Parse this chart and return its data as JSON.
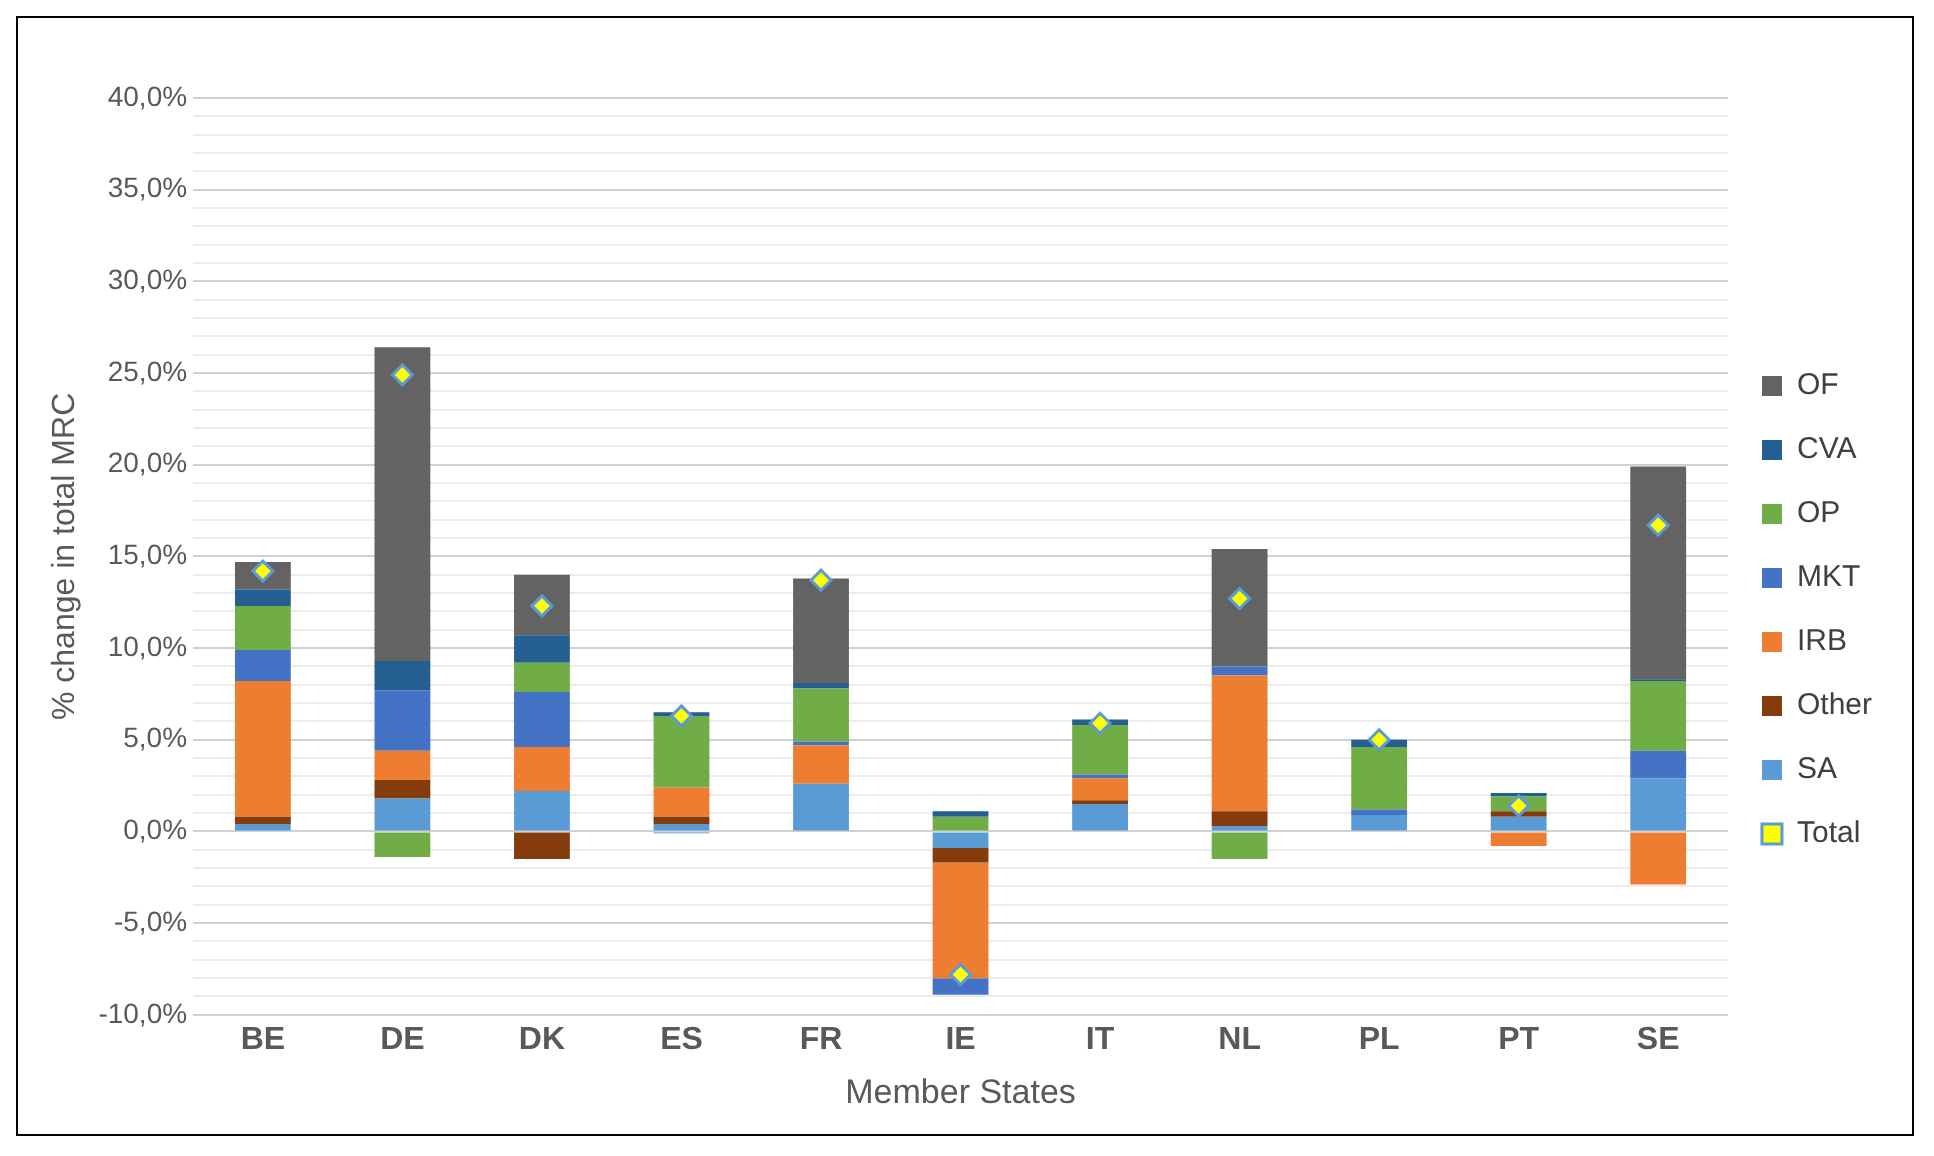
{
  "chart_data": {
    "type": "bar",
    "stacked": true,
    "xlabel": "Member States",
    "ylabel": "% change in total MRC",
    "legend": "right",
    "grid": "y",
    "categories": [
      "BE",
      "DE",
      "DK",
      "ES",
      "FR",
      "IE",
      "IT",
      "NL",
      "PL",
      "PT",
      "SE"
    ],
    "ylim": [
      -10,
      40
    ],
    "yticks": [
      {
        "value": -10,
        "label": "-10,0%"
      },
      {
        "value": -9,
        "label": null
      },
      {
        "value": -8,
        "label": null
      },
      {
        "value": -7,
        "label": null
      },
      {
        "value": -6,
        "label": null
      },
      {
        "value": -5,
        "label": "-5,0%"
      },
      {
        "value": -4,
        "label": null
      },
      {
        "value": -3,
        "label": null
      },
      {
        "value": -2,
        "label": null
      },
      {
        "value": -1,
        "label": null
      },
      {
        "value": 0,
        "label": "0,0%"
      },
      {
        "value": 1,
        "label": null
      },
      {
        "value": 2,
        "label": null
      },
      {
        "value": 3,
        "label": null
      },
      {
        "value": 4,
        "label": null
      },
      {
        "value": 5,
        "label": "5,0%"
      },
      {
        "value": 6,
        "label": null
      },
      {
        "value": 7,
        "label": null
      },
      {
        "value": 8,
        "label": null
      },
      {
        "value": 9,
        "label": null
      },
      {
        "value": 10,
        "label": "10,0%"
      },
      {
        "value": 11,
        "label": null
      },
      {
        "value": 12,
        "label": null
      },
      {
        "value": 13,
        "label": null
      },
      {
        "value": 14,
        "label": null
      },
      {
        "value": 15,
        "label": "15,0%"
      },
      {
        "value": 16,
        "label": null
      },
      {
        "value": 17,
        "label": null
      },
      {
        "value": 18,
        "label": null
      },
      {
        "value": 19,
        "label": null
      },
      {
        "value": 20,
        "label": "20,0%"
      },
      {
        "value": 21,
        "label": null
      },
      {
        "value": 22,
        "label": null
      },
      {
        "value": 23,
        "label": null
      },
      {
        "value": 24,
        "label": null
      },
      {
        "value": 25,
        "label": "25,0%"
      },
      {
        "value": 26,
        "label": null
      },
      {
        "value": 27,
        "label": null
      },
      {
        "value": 28,
        "label": null
      },
      {
        "value": 29,
        "label": null
      },
      {
        "value": 30,
        "label": "30,0%"
      },
      {
        "value": 31,
        "label": null
      },
      {
        "value": 32,
        "label": null
      },
      {
        "value": 33,
        "label": null
      },
      {
        "value": 34,
        "label": null
      },
      {
        "value": 35,
        "label": "35,0%"
      },
      {
        "value": 36,
        "label": null
      },
      {
        "value": 37,
        "label": null
      },
      {
        "value": 38,
        "label": null
      },
      {
        "value": 39,
        "label": null
      },
      {
        "value": 40,
        "label": "40,0%"
      }
    ],
    "series": [
      {
        "name": "SA",
        "color": "#5b9bd5",
        "values": [
          0.4,
          1.8,
          2.2,
          0.4,
          2.6,
          -0.9,
          1.5,
          0.3,
          0.9,
          0.8,
          2.9
        ]
      },
      {
        "name": "Other",
        "color": "#843c0c",
        "values": [
          0.4,
          1.0,
          -1.5,
          0.4,
          null,
          -0.8,
          0.2,
          0.8,
          null,
          0.3,
          null
        ]
      },
      {
        "name": "IRB",
        "color": "#ed7d31",
        "values": [
          7.4,
          1.6,
          2.4,
          1.6,
          2.1,
          -6.3,
          1.2,
          7.4,
          null,
          -0.8,
          -2.9
        ]
      },
      {
        "name": "MKT",
        "color": "#4472c4",
        "values": [
          1.7,
          3.3,
          3.0,
          -0.1,
          0.2,
          -0.9,
          0.2,
          0.5,
          0.3,
          null,
          1.5
        ]
      },
      {
        "name": "OP",
        "color": "#70ad47",
        "values": [
          2.4,
          -1.4,
          1.6,
          3.9,
          2.9,
          0.8,
          2.7,
          -1.5,
          3.4,
          0.8,
          3.8
        ]
      },
      {
        "name": "CVA",
        "color": "#255e91",
        "values": [
          0.9,
          1.6,
          1.5,
          0.2,
          0.3,
          0.3,
          0.3,
          null,
          0.4,
          0.2,
          0.1
        ]
      },
      {
        "name": "OF",
        "color": "#636363",
        "values": [
          1.5,
          17.1,
          3.3,
          null,
          5.7,
          null,
          null,
          6.4,
          null,
          null,
          11.6
        ]
      },
      {
        "name": "Total",
        "type": "scatter",
        "marker": "diamond",
        "color": "#ffff00",
        "x": [
          "BE",
          "DE",
          "DK",
          "ES",
          "FR",
          "IE",
          "IT",
          "NL",
          "PL",
          "PT",
          "SE"
        ],
        "values": [
          14.2,
          24.9,
          12.3,
          6.3,
          13.7,
          -7.8,
          5.9,
          12.7,
          5.0,
          1.4,
          16.7
        ]
      }
    ]
  }
}
